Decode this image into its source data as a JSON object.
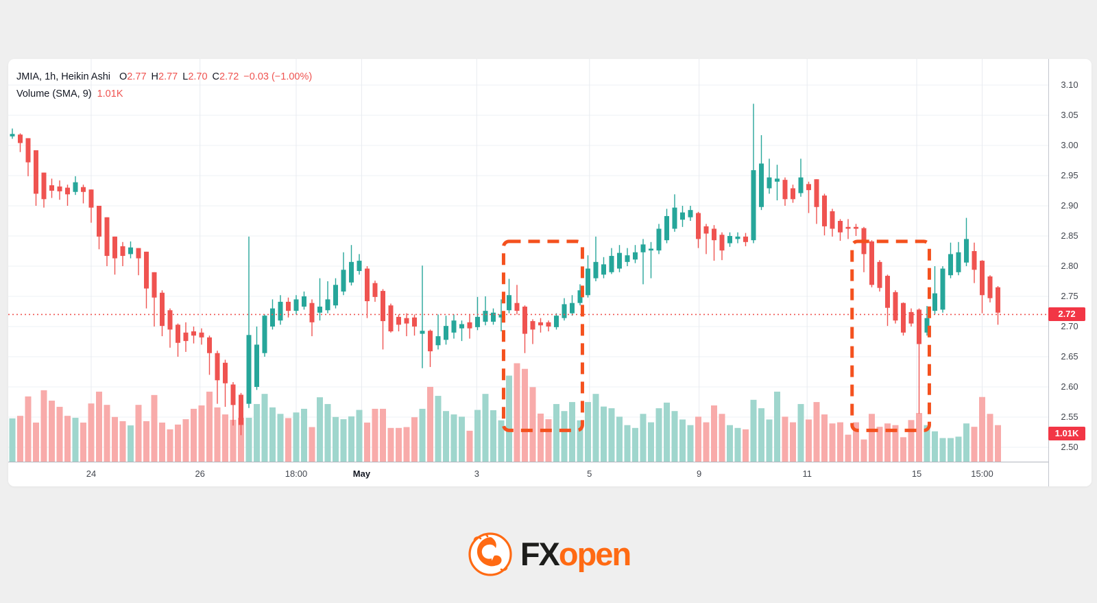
{
  "legend": {
    "title": "JMIA, 1h, Heikin Ashi",
    "pairs": [
      {
        "k": "O",
        "v": "2.77"
      },
      {
        "k": "H",
        "v": "2.77"
      },
      {
        "k": "L",
        "v": "2.70"
      },
      {
        "k": "C",
        "v": "2.72"
      }
    ],
    "change": "−0.03 (−1.00%)",
    "volume_label": "Volume (SMA, 9)",
    "volume_value": "1.01K"
  },
  "price_axis": {
    "ticks": [
      "3.10",
      "3.05",
      "3.00",
      "2.95",
      "2.90",
      "2.85",
      "2.80",
      "2.75",
      "2.70",
      "2.65",
      "2.60",
      "2.55",
      "2.50"
    ],
    "last_price_badge": "2.72",
    "volume_badge": "1.01K"
  },
  "time_axis": {
    "ticks": [
      {
        "label": "24",
        "index": 10.0,
        "strong": false
      },
      {
        "label": "26",
        "index": 23.8,
        "strong": false
      },
      {
        "label": "18:00",
        "index": 36.0,
        "strong": false
      },
      {
        "label": "May",
        "index": 44.3,
        "strong": true
      },
      {
        "label": "3",
        "index": 58.9,
        "strong": false
      },
      {
        "label": "5",
        "index": 73.2,
        "strong": false
      },
      {
        "label": "9",
        "index": 87.1,
        "strong": false
      },
      {
        "label": "11",
        "index": 100.8,
        "strong": false
      },
      {
        "label": "15",
        "index": 114.7,
        "strong": false
      },
      {
        "label": "15:00",
        "index": 123.0,
        "strong": false
      }
    ]
  },
  "annotations": {
    "boxes": [
      {
        "start_index": 62.3,
        "end_index": 72.3,
        "price_top": 2.841,
        "price_bottom": 2.528
      },
      {
        "start_index": 106.5,
        "end_index": 116.3,
        "price_top": 2.841,
        "price_bottom": 2.528
      }
    ],
    "price_line": {
      "price": 2.72,
      "label": "2.72"
    }
  },
  "footer": {
    "fx": "FX",
    "open": "open"
  },
  "colors": {
    "up": "#26a69a",
    "down": "#ef5350",
    "vol_up": "#9fd6cd",
    "vol_down": "#f8abaa",
    "grid": "#edf0f5",
    "grid_vertical": "#e8ebf0",
    "badge": "#f23645",
    "box_orange": "#f4511e",
    "price_line": "#ef5350",
    "page_bg": "#efefef",
    "card_bg": "#ffffff",
    "logo_orange": "#ff6a13",
    "logo_dark": "#1d1d1b"
  },
  "chart_data": {
    "type": "candlestick",
    "symbol": "JMIA",
    "timeframe": "1h",
    "candle_style": "Heikin Ashi",
    "title": "JMIA, 1h, Heikin Ashi with Volume (SMA, 9)",
    "legend_last": {
      "o": 2.77,
      "h": 2.77,
      "l": 2.7,
      "c": 2.72,
      "change": "−0.03",
      "change_pct": "−1.00%"
    },
    "price_ticks": [
      3.1,
      3.05,
      3.0,
      2.95,
      2.9,
      2.85,
      2.8,
      2.75,
      2.7,
      2.65,
      2.6,
      2.55,
      2.5
    ],
    "visible_price_range": [
      2.48,
      3.14
    ],
    "volume_sma_k": 1.01,
    "grid": true,
    "note_candles_format": "[open, high, low, close, volume_thousands]",
    "candles": [
      [
        3.015,
        3.028,
        3.011,
        3.019,
        1.54
      ],
      [
        3.018,
        3.02,
        2.989,
        3.004,
        1.63
      ],
      [
        3.012,
        3.012,
        2.949,
        2.972,
        2.32
      ],
      [
        2.992,
        2.992,
        2.9,
        2.92,
        1.39
      ],
      [
        2.955,
        2.955,
        2.897,
        2.911,
        2.54
      ],
      [
        2.934,
        2.945,
        2.913,
        2.925,
        2.17
      ],
      [
        2.932,
        2.942,
        2.91,
        2.924,
        1.95
      ],
      [
        2.93,
        2.935,
        2.9,
        2.919,
        1.63
      ],
      [
        2.923,
        2.949,
        2.918,
        2.939,
        1.56
      ],
      [
        2.931,
        2.935,
        2.904,
        2.923,
        1.39
      ],
      [
        2.927,
        2.927,
        2.872,
        2.897,
        2.07
      ],
      [
        2.9,
        2.9,
        2.828,
        2.849,
        2.49
      ],
      [
        2.881,
        2.881,
        2.8,
        2.817,
        2.02
      ],
      [
        2.849,
        2.849,
        2.786,
        2.813,
        1.59
      ],
      [
        2.833,
        2.84,
        2.8,
        2.817,
        1.44
      ],
      [
        2.82,
        2.841,
        2.813,
        2.831,
        1.29
      ],
      [
        2.83,
        2.83,
        2.785,
        2.813,
        2.02
      ],
      [
        2.824,
        2.824,
        2.73,
        2.763,
        1.44
      ],
      [
        2.79,
        2.79,
        2.7,
        2.748,
        2.37
      ],
      [
        2.756,
        2.76,
        2.684,
        2.701,
        1.39
      ],
      [
        2.727,
        2.73,
        2.665,
        2.695,
        1.15
      ],
      [
        2.703,
        2.705,
        2.65,
        2.673,
        1.32
      ],
      [
        2.69,
        2.707,
        2.658,
        2.676,
        1.51
      ],
      [
        2.692,
        2.7,
        2.672,
        2.685,
        1.88
      ],
      [
        2.69,
        2.697,
        2.67,
        2.682,
        2.0
      ],
      [
        2.682,
        2.685,
        2.62,
        2.656,
        2.49
      ],
      [
        2.656,
        2.66,
        2.572,
        2.611,
        1.93
      ],
      [
        2.64,
        2.645,
        2.567,
        2.606,
        1.68
      ],
      [
        2.604,
        2.608,
        2.536,
        2.57,
        1.49
      ],
      [
        2.587,
        2.59,
        2.52,
        2.537,
        1.56
      ],
      [
        2.572,
        2.849,
        2.565,
        2.686,
        1.56
      ],
      [
        2.6,
        2.7,
        2.595,
        2.67,
        2.05
      ],
      [
        2.656,
        2.72,
        2.65,
        2.718,
        2.41
      ],
      [
        2.7,
        2.745,
        2.695,
        2.73,
        1.93
      ],
      [
        2.71,
        2.752,
        2.703,
        2.741,
        1.7
      ],
      [
        2.741,
        2.748,
        2.715,
        2.726,
        1.55
      ],
      [
        2.726,
        2.752,
        2.72,
        2.745,
        1.75
      ],
      [
        2.733,
        2.758,
        2.728,
        2.75,
        1.88
      ],
      [
        2.739,
        2.745,
        2.684,
        2.707,
        1.23
      ],
      [
        2.723,
        2.78,
        2.71,
        2.733,
        2.29
      ],
      [
        2.727,
        2.775,
        2.722,
        2.745,
        2.05
      ],
      [
        2.735,
        2.78,
        2.73,
        2.769,
        1.59
      ],
      [
        2.758,
        2.823,
        2.752,
        2.794,
        1.51
      ],
      [
        2.773,
        2.835,
        2.768,
        2.807,
        1.61
      ],
      [
        2.792,
        2.82,
        2.786,
        2.809,
        1.84
      ],
      [
        2.796,
        2.8,
        2.714,
        2.742,
        1.39
      ],
      [
        2.772,
        2.776,
        2.741,
        2.749,
        1.88
      ],
      [
        2.759,
        2.762,
        2.662,
        2.709,
        1.88
      ],
      [
        2.735,
        2.738,
        2.69,
        2.692,
        1.2
      ],
      [
        2.716,
        2.72,
        2.692,
        2.703,
        1.2
      ],
      [
        2.714,
        2.722,
        2.684,
        2.705,
        1.23
      ],
      [
        2.715,
        2.72,
        2.685,
        2.7,
        1.58
      ],
      [
        2.688,
        2.801,
        2.631,
        2.693,
        1.88
      ],
      [
        2.693,
        2.695,
        2.633,
        2.659,
        2.66
      ],
      [
        2.669,
        2.72,
        2.662,
        2.684,
        2.34
      ],
      [
        2.678,
        2.718,
        2.67,
        2.701,
        1.8
      ],
      [
        2.69,
        2.72,
        2.68,
        2.71,
        1.68
      ],
      [
        2.697,
        2.71,
        2.676,
        2.704,
        1.6
      ],
      [
        2.707,
        2.72,
        2.68,
        2.697,
        1.1
      ],
      [
        2.699,
        2.749,
        2.694,
        2.716,
        1.84
      ],
      [
        2.708,
        2.75,
        2.702,
        2.726,
        2.41
      ],
      [
        2.708,
        2.73,
        2.703,
        2.723,
        1.83
      ],
      [
        2.715,
        2.745,
        2.692,
        2.72,
        1.47
      ],
      [
        2.727,
        2.779,
        2.722,
        2.752,
        3.06
      ],
      [
        2.739,
        2.769,
        2.72,
        2.726,
        3.5
      ],
      [
        2.733,
        2.735,
        2.656,
        2.688,
        3.3
      ],
      [
        2.709,
        2.712,
        2.671,
        2.695,
        2.65
      ],
      [
        2.707,
        2.714,
        2.69,
        2.702,
        1.71
      ],
      [
        2.707,
        2.71,
        2.692,
        2.7,
        1.51
      ],
      [
        2.699,
        2.722,
        2.695,
        2.718,
        2.05
      ],
      [
        2.714,
        2.747,
        2.71,
        2.737,
        1.8
      ],
      [
        2.722,
        2.752,
        2.718,
        2.739,
        2.12
      ],
      [
        2.739,
        2.77,
        2.735,
        2.76,
        1.47
      ],
      [
        2.752,
        2.818,
        2.748,
        2.796,
        2.12
      ],
      [
        2.78,
        2.849,
        2.775,
        2.807,
        2.41
      ],
      [
        2.786,
        2.815,
        2.78,
        2.803,
        1.96
      ],
      [
        2.79,
        2.83,
        2.787,
        2.817,
        1.9
      ],
      [
        2.796,
        2.835,
        2.79,
        2.822,
        1.6
      ],
      [
        2.807,
        2.83,
        2.8,
        2.818,
        1.3
      ],
      [
        2.811,
        2.835,
        2.805,
        2.823,
        1.2
      ],
      [
        2.823,
        2.845,
        2.77,
        2.836,
        1.7
      ],
      [
        2.826,
        2.84,
        2.78,
        2.829,
        1.4
      ],
      [
        2.826,
        2.87,
        2.82,
        2.862,
        1.9
      ],
      [
        2.843,
        2.895,
        2.838,
        2.883,
        2.1
      ],
      [
        2.862,
        2.919,
        2.857,
        2.897,
        1.8
      ],
      [
        2.877,
        2.9,
        2.865,
        2.889,
        1.5
      ],
      [
        2.881,
        2.9,
        2.875,
        2.893,
        1.3
      ],
      [
        2.888,
        2.89,
        2.83,
        2.845,
        1.6
      ],
      [
        2.866,
        2.87,
        2.82,
        2.854,
        1.4
      ],
      [
        2.862,
        2.868,
        2.809,
        2.843,
        2.0
      ],
      [
        2.852,
        2.856,
        2.81,
        2.826,
        1.7
      ],
      [
        2.838,
        2.856,
        2.832,
        2.85,
        1.3
      ],
      [
        2.845,
        2.856,
        2.838,
        2.849,
        1.2
      ],
      [
        2.849,
        2.855,
        2.833,
        2.84,
        1.15
      ],
      [
        2.843,
        3.069,
        2.838,
        2.959,
        2.2
      ],
      [
        2.898,
        3.017,
        2.893,
        2.97,
        1.9
      ],
      [
        2.929,
        2.978,
        2.92,
        2.947,
        1.5
      ],
      [
        2.94,
        2.968,
        2.909,
        2.945,
        2.49
      ],
      [
        2.943,
        2.947,
        2.9,
        2.911,
        1.6
      ],
      [
        2.929,
        2.935,
        2.905,
        2.911,
        1.4
      ],
      [
        2.921,
        2.978,
        2.915,
        2.947,
        2.05
      ],
      [
        2.936,
        2.94,
        2.888,
        2.926,
        1.5
      ],
      [
        2.944,
        2.944,
        2.87,
        2.898,
        2.12
      ],
      [
        2.917,
        2.92,
        2.851,
        2.866,
        1.68
      ],
      [
        2.891,
        2.895,
        2.849,
        2.862,
        1.36
      ],
      [
        2.875,
        2.878,
        2.842,
        2.856,
        1.4
      ],
      [
        2.865,
        2.878,
        2.845,
        2.862,
        0.96
      ],
      [
        2.865,
        2.87,
        2.85,
        2.862,
        1.4
      ],
      [
        2.863,
        2.865,
        2.79,
        2.82,
        0.79
      ],
      [
        2.841,
        2.843,
        2.765,
        2.769,
        1.7
      ],
      [
        2.807,
        2.81,
        2.758,
        2.764,
        1.24
      ],
      [
        2.784,
        2.786,
        2.701,
        2.731,
        1.36
      ],
      [
        2.757,
        2.76,
        2.705,
        2.71,
        1.3
      ],
      [
        2.739,
        2.74,
        2.685,
        2.69,
        0.87
      ],
      [
        2.724,
        2.73,
        2.7,
        2.705,
        1.48
      ],
      [
        2.728,
        2.73,
        2.556,
        2.671,
        1.73
      ],
      [
        2.69,
        2.734,
        2.685,
        2.714,
        1.3
      ],
      [
        2.726,
        2.8,
        2.72,
        2.755,
        1.08
      ],
      [
        2.728,
        2.8,
        2.723,
        2.796,
        0.84
      ],
      [
        2.785,
        2.839,
        2.78,
        2.82,
        0.84
      ],
      [
        2.79,
        2.84,
        2.785,
        2.823,
        0.89
      ],
      [
        2.806,
        2.88,
        2.8,
        2.845,
        1.36
      ],
      [
        2.825,
        2.839,
        2.772,
        2.794,
        1.24
      ],
      [
        2.809,
        2.81,
        2.722,
        2.752,
        2.3
      ],
      [
        2.783,
        2.785,
        2.74,
        2.747,
        1.7
      ],
      [
        2.765,
        2.767,
        2.703,
        2.723,
        1.3
      ]
    ]
  }
}
